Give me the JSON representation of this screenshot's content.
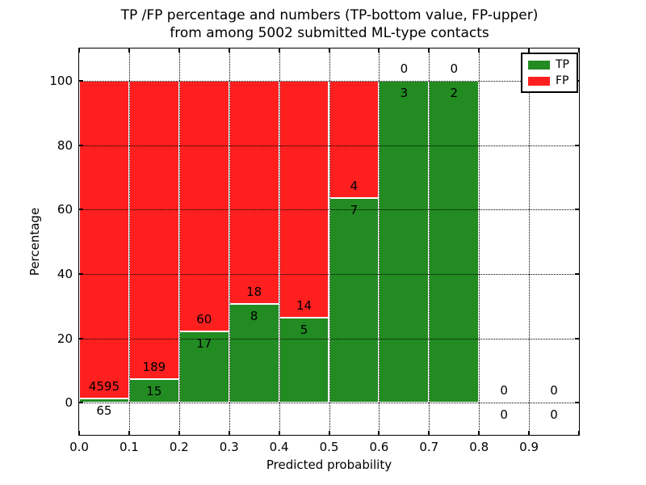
{
  "chart_data": {
    "type": "bar",
    "stacked": true,
    "title": "TP /FP percentage and numbers (TP-bottom value, FP-upper)\nfrom among 5002 submitted ML-type contacts",
    "xlabel": "Predicted probability",
    "ylabel": "Percentage",
    "xlim": [
      0.0,
      1.0
    ],
    "ylim": [
      -10,
      110
    ],
    "grid": true,
    "legend": {
      "position": "upper-right",
      "entries": [
        {
          "label": "TP",
          "color": "#228b22"
        },
        {
          "label": "FP",
          "color": "#ff1f1f"
        }
      ]
    },
    "x_ticks": [
      {
        "value": 0.0,
        "label": "0.0"
      },
      {
        "value": 0.1,
        "label": "0.1"
      },
      {
        "value": 0.2,
        "label": "0.2"
      },
      {
        "value": 0.3,
        "label": "0.3"
      },
      {
        "value": 0.4,
        "label": "0.4"
      },
      {
        "value": 0.5,
        "label": "0.5"
      },
      {
        "value": 0.6,
        "label": "0.6"
      },
      {
        "value": 0.7,
        "label": "0.7"
      },
      {
        "value": 0.8,
        "label": "0.8"
      },
      {
        "value": 0.9,
        "label": "0.9"
      },
      {
        "value": 1.0,
        "label": ""
      }
    ],
    "y_ticks": [
      {
        "value": 0,
        "label": "0"
      },
      {
        "value": 20,
        "label": "20"
      },
      {
        "value": 40,
        "label": "40"
      },
      {
        "value": 60,
        "label": "60"
      },
      {
        "value": 80,
        "label": "80"
      },
      {
        "value": 100,
        "label": "100"
      }
    ],
    "total_contacts": 5002,
    "bins": [
      {
        "x_start": 0.0,
        "x_end": 0.1,
        "tp_count": 65,
        "fp_count": 4595,
        "tp_pct": 1.39,
        "fp_pct": 98.61
      },
      {
        "x_start": 0.1,
        "x_end": 0.2,
        "tp_count": 15,
        "fp_count": 189,
        "tp_pct": 7.35,
        "fp_pct": 92.65
      },
      {
        "x_start": 0.2,
        "x_end": 0.3,
        "tp_count": 17,
        "fp_count": 60,
        "tp_pct": 22.08,
        "fp_pct": 77.92
      },
      {
        "x_start": 0.3,
        "x_end": 0.4,
        "tp_count": 8,
        "fp_count": 18,
        "tp_pct": 30.77,
        "fp_pct": 69.23
      },
      {
        "x_start": 0.4,
        "x_end": 0.5,
        "tp_count": 5,
        "fp_count": 14,
        "tp_pct": 26.32,
        "fp_pct": 73.68
      },
      {
        "x_start": 0.5,
        "x_end": 0.6,
        "tp_count": 7,
        "fp_count": 4,
        "tp_pct": 63.64,
        "fp_pct": 36.36
      },
      {
        "x_start": 0.6,
        "x_end": 0.7,
        "tp_count": 3,
        "fp_count": 0,
        "tp_pct": 100,
        "fp_pct": 0
      },
      {
        "x_start": 0.7,
        "x_end": 0.8,
        "tp_count": 2,
        "fp_count": 0,
        "tp_pct": 100,
        "fp_pct": 0
      },
      {
        "x_start": 0.8,
        "x_end": 0.9,
        "tp_count": 0,
        "fp_count": 0,
        "tp_pct": 0,
        "fp_pct": 0
      },
      {
        "x_start": 0.9,
        "x_end": 1.0,
        "tp_count": 0,
        "fp_count": 0,
        "tp_pct": 0,
        "fp_pct": 0
      }
    ]
  },
  "colors": {
    "tp": "#228b22",
    "fp": "#ff1f1f",
    "grid": "#000000",
    "background": "#ffffff"
  }
}
